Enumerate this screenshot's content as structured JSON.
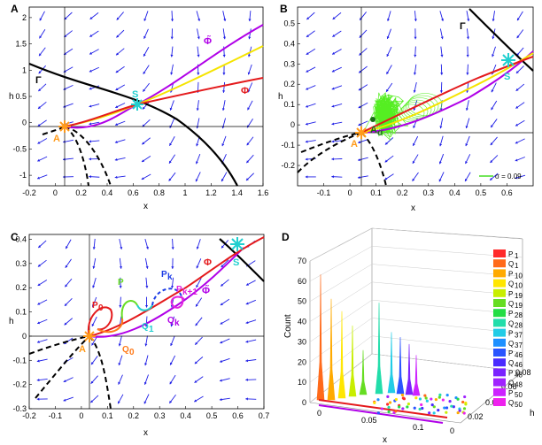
{
  "chart_data": [
    {
      "panel": "A",
      "type": "line",
      "xlabel": "x",
      "ylabel": "h",
      "xlim": [
        -0.2,
        1.6
      ],
      "ylim": [
        -1.2,
        2.2
      ],
      "xticks": [
        "-0.2",
        "0",
        "0.2",
        "0.4",
        "0.6",
        "0.8",
        "1",
        "1.2",
        "1.4",
        "1.6"
      ],
      "yticks": [
        "-1",
        "-0.5",
        "0",
        "0.5",
        "1",
        "1.5",
        "2"
      ],
      "labels": {
        "gamma": "Γ",
        "phi": "Φ",
        "phitilde": "Φ̃",
        "A": "A",
        "S": "S"
      },
      "colors": {
        "phi": "#e41a1c",
        "phitilde": "#b000e8",
        "yellow": "#f5e400",
        "gamma": "#000000",
        "field": "#1e1ee6",
        "A": "#ff9a1a",
        "S": "#22cfcf"
      },
      "points": {
        "A": [
          0,
          0
        ],
        "S": [
          0.6,
          0.4
        ]
      }
    },
    {
      "panel": "B",
      "type": "line",
      "xlabel": "x",
      "ylabel": "h",
      "xlim": [
        -0.2,
        0.7
      ],
      "ylim": [
        -0.3,
        0.58
      ],
      "xticks": [
        "-0.1",
        "0",
        "0.1",
        "0.2",
        "0.3",
        "0.4",
        "0.5",
        "0.6"
      ],
      "yticks": [
        "-0.2",
        "-0.1",
        "0",
        "0.1",
        "0.2",
        "0.3",
        "0.4",
        "0.5"
      ],
      "labels": {
        "gamma": "Γ",
        "A": "A",
        "Aw": "A",
        "Aw_sub": "σ",
        "S": "S"
      },
      "legend": [
        {
          "name": "σ = 0.09",
          "color": "#44dd22"
        }
      ],
      "colors": {
        "noise": "#55ee22",
        "phi": "#e41a1c",
        "phitilde": "#b000e8",
        "yellow": "#f5e400"
      },
      "points": {
        "A": [
          0,
          0
        ],
        "S": [
          0.6,
          0.35
        ],
        "Aw": [
          0.05,
          0.08
        ]
      }
    },
    {
      "panel": "C",
      "type": "line",
      "xlabel": "x",
      "ylabel": "h",
      "xlim": [
        -0.2,
        0.7
      ],
      "ylim": [
        -0.3,
        0.42
      ],
      "xticks": [
        "-0.2",
        "-0.1",
        "0",
        "0.1",
        "0.2",
        "0.3",
        "0.4",
        "0.5",
        "0.6",
        "0.7"
      ],
      "yticks": [
        "-0.3",
        "-0.2",
        "-0.1",
        "0",
        "0.1",
        "0.2",
        "0.3",
        "0.4"
      ],
      "labels": {
        "phi": "Φ",
        "phitilde": "Φ̃",
        "A": "A",
        "S": "S",
        "P0": "P",
        "P0_sub": "0",
        "Q0": "Q",
        "Q0_sub": "0",
        "P": "P",
        "Pk": "P",
        "Pk_sub": "k",
        "Pk1": "P",
        "Pk1_sub": "k+1",
        "Qk": "Q",
        "Qk_sub": "k",
        "Q1": "Q",
        "Q1_sub": "1"
      },
      "points": {
        "A": [
          0,
          0
        ],
        "S": [
          0.6,
          0.35
        ]
      }
    },
    {
      "panel": "D",
      "type": "histogram3d",
      "zlabel": "Count",
      "xlabel": "x",
      "ylabel": "h",
      "zticks": [
        "0",
        "10",
        "20",
        "30",
        "40",
        "50",
        "60",
        "70"
      ],
      "xticks": [
        "0",
        "0.05",
        "0.1"
      ],
      "yticks": [
        "0",
        "0.02",
        "0.04",
        "0.06",
        "0.08"
      ],
      "legend": [
        {
          "name": "P",
          "sub": "1",
          "color": "#ff2a2a"
        },
        {
          "name": "Q",
          "sub": "1",
          "color": "#ff6a1a"
        },
        {
          "name": "P",
          "sub": "10",
          "color": "#ffaa00"
        },
        {
          "name": "Q",
          "sub": "10",
          "color": "#ffe600"
        },
        {
          "name": "P",
          "sub": "19",
          "color": "#c8ee00"
        },
        {
          "name": "Q",
          "sub": "19",
          "color": "#66dd22"
        },
        {
          "name": "P",
          "sub": "28",
          "color": "#22dd44"
        },
        {
          "name": "Q",
          "sub": "28",
          "color": "#22ddaa"
        },
        {
          "name": "P",
          "sub": "37",
          "color": "#22cce6"
        },
        {
          "name": "Q",
          "sub": "37",
          "color": "#1e90ff"
        },
        {
          "name": "P",
          "sub": "46",
          "color": "#2a55ff"
        },
        {
          "name": "Q",
          "sub": "46",
          "color": "#4a2aff"
        },
        {
          "name": "P",
          "sub": "48",
          "color": "#7a22ff"
        },
        {
          "name": "Q",
          "sub": "48",
          "color": "#a022ff"
        },
        {
          "name": "P",
          "sub": "50",
          "color": "#cc22ff"
        },
        {
          "name": "Q",
          "sub": "50",
          "color": "#ee22ee"
        }
      ],
      "peaks": [
        {
          "count": 62,
          "color": "#ff6a1a"
        },
        {
          "count": 50,
          "color": "#ffaa00"
        },
        {
          "count": 43,
          "color": "#ffe600"
        },
        {
          "count": 35,
          "color": "#c8ee00"
        },
        {
          "count": 22,
          "color": "#66dd22"
        },
        {
          "count": 45,
          "color": "#22ddaa"
        },
        {
          "count": 30,
          "color": "#22cce6"
        },
        {
          "count": 28,
          "color": "#2a55ff"
        },
        {
          "count": 25,
          "color": "#7a22ff"
        },
        {
          "count": 20,
          "color": "#cc22ff"
        }
      ]
    }
  ],
  "panel_letters": [
    "A",
    "B",
    "C",
    "D"
  ]
}
